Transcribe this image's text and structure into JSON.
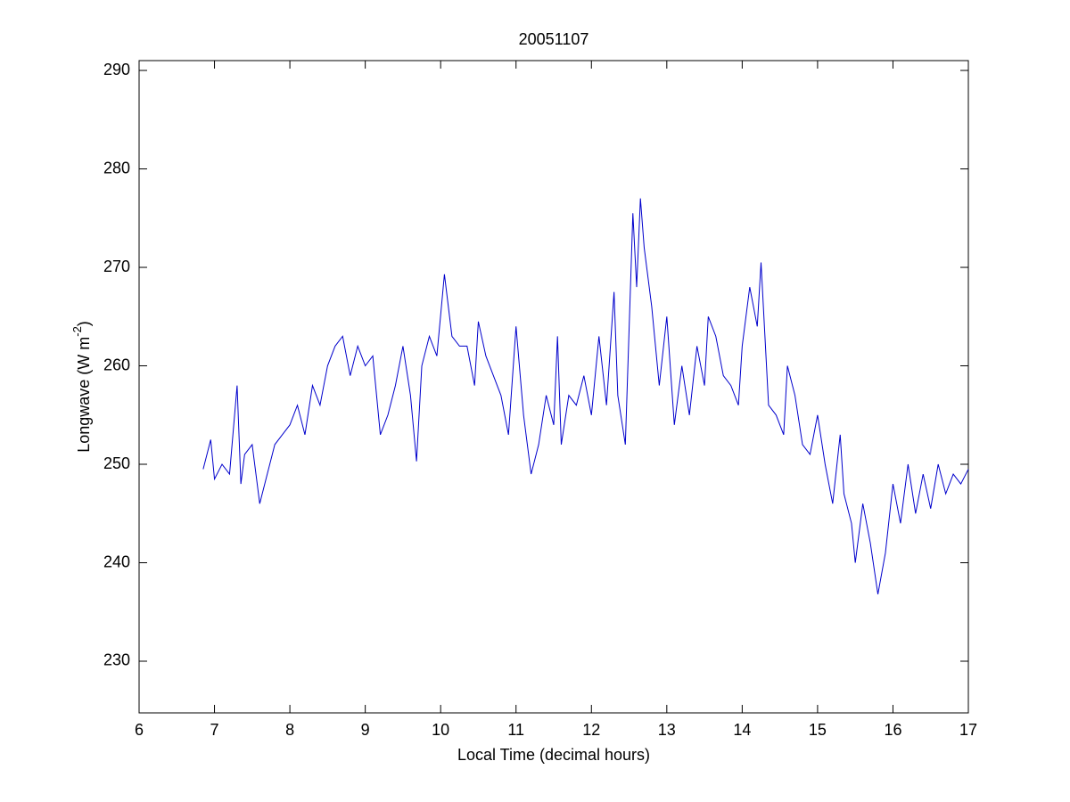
{
  "chart_data": {
    "type": "line",
    "title": "20051107",
    "x_label": "Local Time (decimal hours)",
    "y_label_parts": [
      "Longwave (W m",
      "-2",
      ")"
    ],
    "xlim": [
      6,
      17
    ],
    "ylim": [
      224.75,
      291
    ],
    "xticks": [
      6,
      7,
      8,
      9,
      10,
      11,
      12,
      13,
      14,
      15,
      16,
      17
    ],
    "yticks": [
      230,
      240,
      250,
      260,
      270,
      280,
      290
    ],
    "box": true,
    "series": [
      {
        "color": "#0000cc",
        "x": [
          6.85,
          6.95,
          7.0,
          7.1,
          7.2,
          7.3,
          7.35,
          7.4,
          7.5,
          7.6,
          7.7,
          7.8,
          7.9,
          8.0,
          8.1,
          8.2,
          8.3,
          8.4,
          8.5,
          8.6,
          8.7,
          8.8,
          8.9,
          9.0,
          9.1,
          9.2,
          9.3,
          9.4,
          9.5,
          9.6,
          9.68,
          9.75,
          9.85,
          9.95,
          10.05,
          10.15,
          10.25,
          10.35,
          10.45,
          10.5,
          10.6,
          10.7,
          10.8,
          10.9,
          11.0,
          11.1,
          11.2,
          11.3,
          11.4,
          11.5,
          11.55,
          11.6,
          11.7,
          11.8,
          11.9,
          12.0,
          12.1,
          12.2,
          12.3,
          12.35,
          12.45,
          12.55,
          12.6,
          12.65,
          12.7,
          12.8,
          12.9,
          13.0,
          13.1,
          13.2,
          13.3,
          13.4,
          13.5,
          13.55,
          13.65,
          13.75,
          13.85,
          13.95,
          14.0,
          14.1,
          14.2,
          14.25,
          14.35,
          14.45,
          14.55,
          14.6,
          14.7,
          14.8,
          14.9,
          15.0,
          15.1,
          15.2,
          15.3,
          15.35,
          15.45,
          15.5,
          15.6,
          15.7,
          15.8,
          15.9,
          16.0,
          16.1,
          16.2,
          16.3,
          16.4,
          16.5,
          16.6,
          16.7,
          16.8,
          16.9,
          17.0
        ],
        "values": [
          249.5,
          252.5,
          248.5,
          250,
          249,
          258,
          248,
          251,
          252,
          246,
          249,
          252,
          253,
          254,
          256,
          253,
          258,
          256,
          260,
          262,
          263,
          259,
          262,
          260,
          261,
          253,
          255,
          258,
          262,
          257,
          250.3,
          260,
          263,
          261,
          269.3,
          263,
          262,
          262,
          258,
          264.5,
          261,
          259,
          257,
          253,
          264,
          255,
          249,
          252,
          257,
          254,
          263,
          252,
          257,
          256,
          259,
          255,
          263,
          256,
          267.5,
          257,
          252,
          275.5,
          268,
          277,
          272,
          266,
          258,
          265,
          254,
          260,
          255,
          262,
          258,
          265,
          263,
          259,
          258,
          256,
          262,
          268,
          264,
          270.5,
          256,
          255,
          253,
          260,
          257,
          252,
          251,
          255,
          250,
          246,
          253,
          247,
          244,
          240,
          246,
          242,
          236.8,
          241,
          248,
          244,
          250,
          245,
          249,
          245.5,
          250,
          247,
          249,
          248,
          249.5
        ]
      }
    ]
  }
}
